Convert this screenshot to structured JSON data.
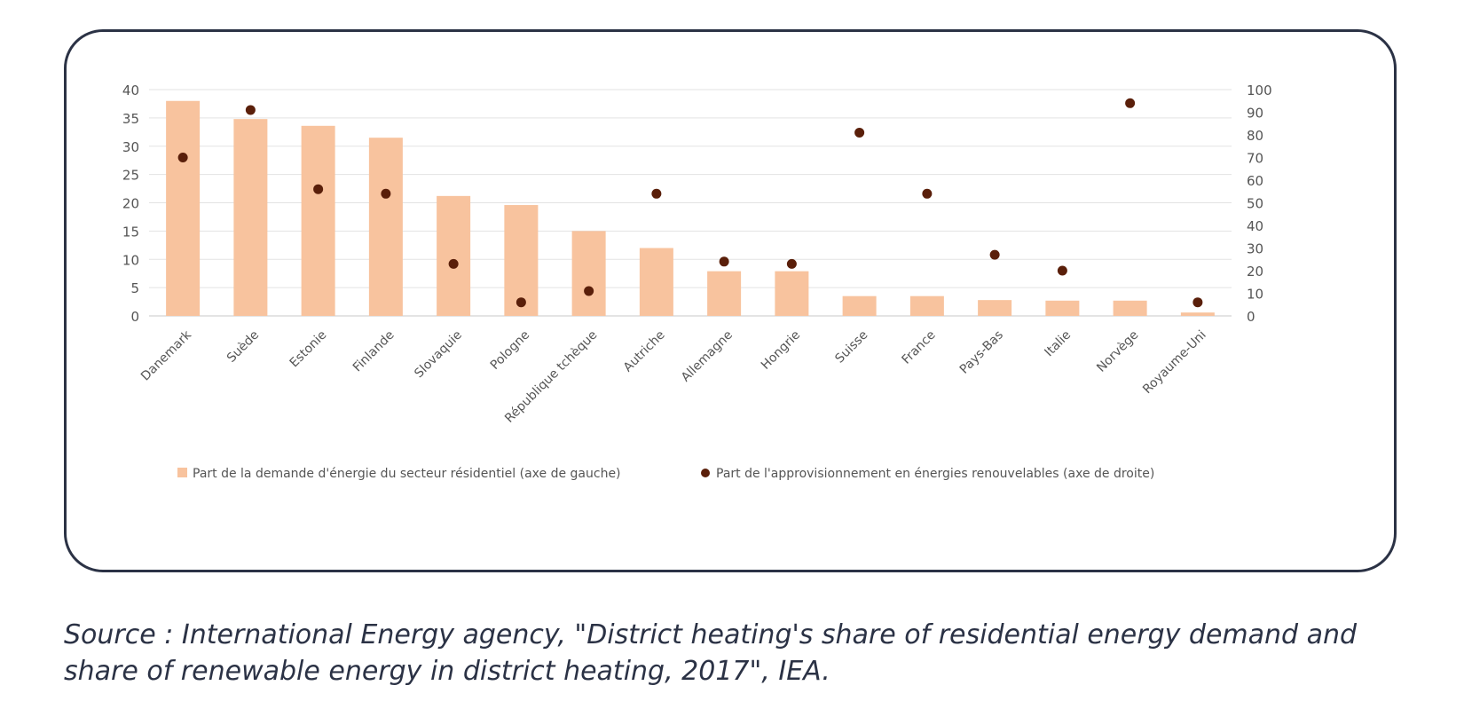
{
  "chart_data": {
    "type": "bar",
    "categories": [
      "Danemark",
      "Suède",
      "Estonie",
      "Finlande",
      "Slovaquie",
      "Pologne",
      "République tchèque",
      "Autriche",
      "Allemagne",
      "Hongrie",
      "Suisse",
      "France",
      "Pays-Bas",
      "Italie",
      "Norvège",
      "Royaume-Uni"
    ],
    "series": [
      {
        "name": "Part de la demande d'énergie du secteur résidentiel (axe de gauche)",
        "kind": "bar",
        "axis": "left",
        "color": "#f8c39e",
        "values": [
          38,
          34.8,
          33.6,
          31.5,
          21.2,
          19.6,
          15,
          12,
          7.9,
          7.9,
          3.5,
          3.5,
          2.8,
          2.7,
          2.7,
          0.6
        ]
      },
      {
        "name": "Part de l'approvisionnement en énergies renouvelables (axe de droite)",
        "kind": "dot",
        "axis": "right",
        "color": "#5a1f0a",
        "values": [
          70,
          91,
          56,
          54,
          23,
          6,
          11,
          54,
          24,
          23,
          81,
          54,
          27,
          20,
          94,
          6
        ]
      }
    ],
    "y_left": {
      "min": 0,
      "max": 40,
      "ticks": [
        "0",
        "5",
        "10",
        "15",
        "20",
        "25",
        "30",
        "35",
        "40"
      ]
    },
    "y_right": {
      "min": 0,
      "max": 100,
      "ticks": [
        "0",
        "10",
        "20",
        "30",
        "40",
        "50",
        "60",
        "70",
        "80",
        "90",
        "100"
      ]
    },
    "grid": true,
    "legend_position": "bottom",
    "title": "",
    "xlabel": "",
    "ylabel": ""
  },
  "source_text": "Source : International Energy agency, \"District heating's share of residential energy demand and share of renewable energy in district heating, 2017\", IEA."
}
